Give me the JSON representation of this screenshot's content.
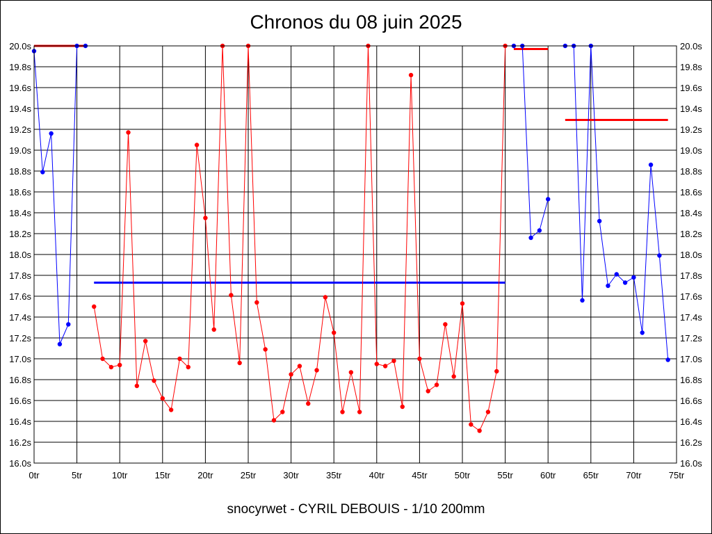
{
  "chart_data": {
    "type": "line",
    "title": "Chronos du 08 juin 2025",
    "subtitle": "snocyrwet - CYRIL DEBOUIS - 1/10 200mm",
    "xlim": [
      0,
      75
    ],
    "ylim": [
      16.0,
      20.0
    ],
    "x_ticks": [
      0,
      5,
      10,
      15,
      20,
      25,
      30,
      35,
      40,
      45,
      50,
      55,
      60,
      65,
      70,
      75
    ],
    "x_tick_labels": [
      "0tr",
      "5tr",
      "10tr",
      "15tr",
      "20tr",
      "25tr",
      "30tr",
      "35tr",
      "40tr",
      "45tr",
      "50tr",
      "55tr",
      "60tr",
      "65tr",
      "70tr",
      "75tr"
    ],
    "y_ticks": [
      16.0,
      16.2,
      16.4,
      16.6,
      16.8,
      17.0,
      17.2,
      17.4,
      17.6,
      17.8,
      18.0,
      18.2,
      18.4,
      18.6,
      18.8,
      19.0,
      19.2,
      19.4,
      19.6,
      19.8,
      20.0
    ],
    "y_tick_labels": [
      "16.0s",
      "16.2s",
      "16.4s",
      "16.6s",
      "16.8s",
      "17.0s",
      "17.2s",
      "17.4s",
      "17.6s",
      "17.8s",
      "18.0s",
      "18.2s",
      "18.4s",
      "18.6s",
      "18.8s",
      "19.0s",
      "19.2s",
      "19.4s",
      "19.6s",
      "19.8s",
      "20.0s"
    ],
    "grid": true,
    "series": [
      {
        "color": "#0000ff",
        "points": [
          [
            0,
            19.95
          ],
          [
            1,
            18.79
          ],
          [
            2,
            19.16
          ],
          [
            3,
            17.14
          ],
          [
            4,
            17.33
          ],
          [
            5,
            20.0
          ],
          [
            6,
            20.0
          ]
        ]
      },
      {
        "color": "#ff0000",
        "points": [
          [
            7,
            17.5
          ],
          [
            8,
            17.0
          ],
          [
            9,
            16.92
          ],
          [
            10,
            16.94
          ],
          [
            11,
            19.17
          ],
          [
            12,
            16.74
          ],
          [
            13,
            17.17
          ],
          [
            14,
            16.79
          ],
          [
            15,
            16.62
          ],
          [
            16,
            16.51
          ],
          [
            17,
            17.0
          ],
          [
            18,
            16.92
          ],
          [
            19,
            19.05
          ],
          [
            20,
            18.35
          ],
          [
            21,
            17.28
          ],
          [
            22,
            20.0
          ],
          [
            23,
            17.61
          ],
          [
            24,
            16.96
          ],
          [
            25,
            20.0
          ],
          [
            26,
            17.54
          ],
          [
            27,
            17.09
          ],
          [
            28,
            16.41
          ],
          [
            29,
            16.49
          ],
          [
            30,
            16.85
          ],
          [
            31,
            16.93
          ],
          [
            32,
            16.57
          ],
          [
            33,
            16.89
          ],
          [
            34,
            17.59
          ],
          [
            35,
            17.25
          ],
          [
            36,
            16.49
          ],
          [
            37,
            16.87
          ],
          [
            38,
            16.49
          ],
          [
            39,
            20.0
          ],
          [
            40,
            16.95
          ],
          [
            41,
            16.93
          ],
          [
            42,
            16.98
          ],
          [
            43,
            16.54
          ],
          [
            44,
            19.72
          ],
          [
            45,
            17.0
          ],
          [
            46,
            16.69
          ],
          [
            47,
            16.75
          ],
          [
            48,
            17.33
          ],
          [
            49,
            16.83
          ],
          [
            50,
            17.53
          ],
          [
            51,
            16.37
          ],
          [
            52,
            16.31
          ],
          [
            53,
            16.49
          ],
          [
            54,
            16.88
          ],
          [
            55,
            20.0
          ]
        ]
      },
      {
        "color": "#0000ff",
        "points": [
          [
            56,
            20.0
          ],
          [
            57,
            20.0
          ],
          [
            58,
            18.16
          ],
          [
            59,
            18.23
          ],
          [
            60,
            18.53
          ]
        ]
      },
      {
        "color": "#0000ff",
        "points": [
          [
            62,
            20.0
          ],
          [
            63,
            20.0
          ],
          [
            64,
            17.56
          ],
          [
            65,
            20.0
          ],
          [
            66,
            18.32
          ],
          [
            67,
            17.7
          ],
          [
            68,
            17.81
          ],
          [
            69,
            17.73
          ],
          [
            70,
            17.78
          ],
          [
            71,
            17.25
          ],
          [
            72,
            18.86
          ],
          [
            73,
            17.99
          ],
          [
            74,
            16.99
          ]
        ]
      }
    ],
    "reference_lines": [
      {
        "color": "#ff0000",
        "x_start": 0,
        "x_end": 6,
        "y": 20.0
      },
      {
        "color": "#0000ff",
        "x_start": 7,
        "x_end": 55,
        "y": 17.73
      },
      {
        "color": "#ff0000",
        "x_start": 56,
        "x_end": 60,
        "y": 19.97
      },
      {
        "color": "#ff0000",
        "x_start": 62,
        "x_end": 74,
        "y": 19.29
      }
    ]
  }
}
